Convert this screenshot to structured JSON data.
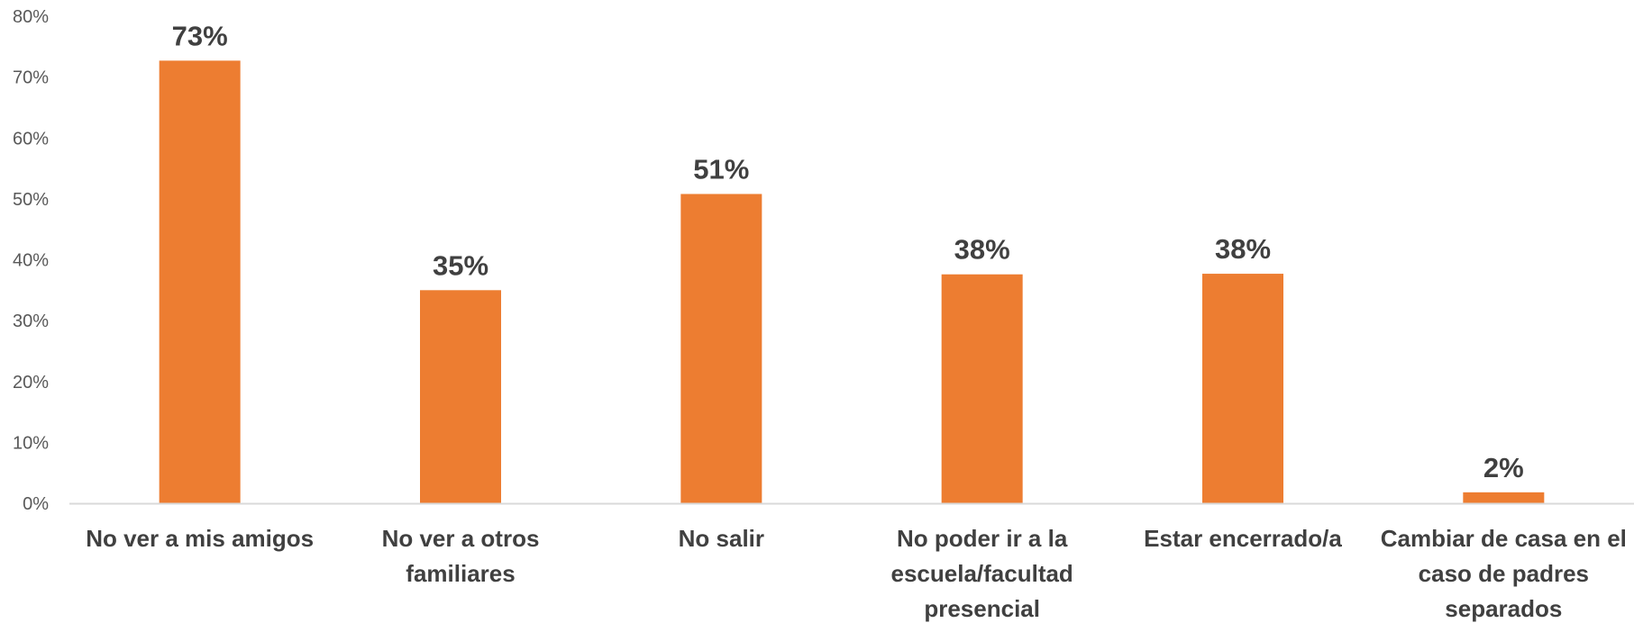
{
  "colors": {
    "bar": "#ED7D31",
    "axis": "#D9D9D9",
    "label_text": "#404040",
    "tick_text": "#595959"
  },
  "chart_data": {
    "type": "bar",
    "categories": [
      "No ver a mis amigos",
      "No ver a otros familiares",
      "No salir",
      "No poder ir a la escuela/facultad presencial",
      "Estar encerrado/a",
      "Cambiar de casa en el caso de padres separados"
    ],
    "category_lines": [
      [
        "No ver a mis amigos"
      ],
      [
        "No ver a otros",
        "familiares"
      ],
      [
        "No salir"
      ],
      [
        "No poder ir a la",
        "escuela/facultad",
        "presencial"
      ],
      [
        "Estar encerrado/a"
      ],
      [
        "Cambiar de casa en el",
        "caso de padres",
        "separados"
      ]
    ],
    "values": [
      72.7,
      35.0,
      50.8,
      37.6,
      37.7,
      1.8
    ],
    "data_labels": [
      "73%",
      "35%",
      "51%",
      "38%",
      "38%",
      "2%"
    ],
    "yticks": [
      "0%",
      "10%",
      "20%",
      "30%",
      "40%",
      "50%",
      "60%",
      "70%",
      "80%"
    ],
    "ylim": [
      0,
      80
    ],
    "grid": false,
    "legend": "none"
  }
}
